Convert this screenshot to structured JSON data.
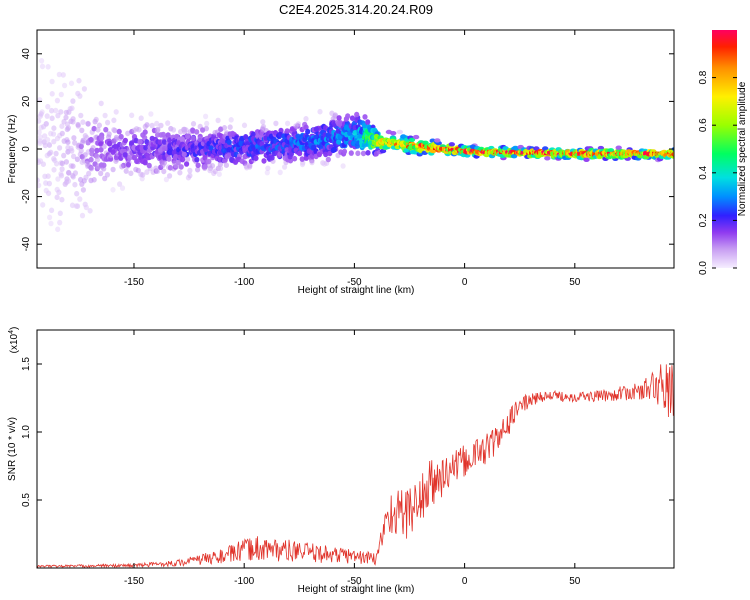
{
  "figure": {
    "title": "C2E4.2025.314.20.24.R09"
  },
  "colors": {
    "snr_line": "#e0332a",
    "axis": "#000000",
    "background": "#ffffff"
  },
  "chart_data": [
    {
      "type": "heatmap",
      "title": "C2E4.2025.314.20.24.R09",
      "xlabel": "Height of straight line (km)",
      "ylabel": "Frequency (Hz)",
      "xlim": [
        -194,
        95
      ],
      "ylim": [
        -50,
        50
      ],
      "x_ticks": [
        -150,
        -100,
        -50,
        0,
        50
      ],
      "y_ticks": [
        -40,
        -20,
        0,
        20,
        40
      ],
      "colorbar": {
        "label": "Normalized spectral amplitude",
        "range": [
          0,
          1
        ],
        "ticks": [
          "0.0",
          "0.2",
          "0.4",
          "0.6",
          "0.8"
        ],
        "tick_values": [
          0,
          0.2,
          0.4,
          0.6,
          0.8
        ]
      },
      "ridge": {
        "description_points": [
          {
            "x": -190,
            "f": 0,
            "spread": 48,
            "amp": 0.05
          },
          {
            "x": -160,
            "f": 0,
            "spread": 14,
            "amp": 0.15
          },
          {
            "x": -120,
            "f": 0,
            "spread": 10,
            "amp": 0.22
          },
          {
            "x": -80,
            "f": 2,
            "spread": 8,
            "amp": 0.28
          },
          {
            "x": -50,
            "f": 6,
            "spread": 10,
            "amp": 0.32
          },
          {
            "x": -38,
            "f": 3,
            "spread": 4,
            "amp": 0.75
          },
          {
            "x": -20,
            "f": 1,
            "spread": 3,
            "amp": 0.9
          },
          {
            "x": 0,
            "f": -1,
            "spread": 2,
            "amp": 0.95
          },
          {
            "x": 50,
            "f": -2,
            "spread": 2,
            "amp": 0.95
          },
          {
            "x": 95,
            "f": -2,
            "spread": 2,
            "amp": 0.9
          }
        ]
      }
    },
    {
      "type": "line",
      "xlabel": "Height of straight line (km)",
      "ylabel": "SNR (10 * v/v)",
      "y_multiplier": "(x10⁴)",
      "multiplier_base": "(x10",
      "multiplier_exp": "4",
      "multiplier_close": ")",
      "xlim": [
        -194,
        95
      ],
      "ylim": [
        0,
        1.75
      ],
      "x_ticks": [
        -150,
        -100,
        -50,
        0,
        50
      ],
      "y_ticks": [
        0.5,
        1.0,
        1.5
      ],
      "y_tick_labels": [
        "0.5",
        "1.0",
        "1.5"
      ],
      "series": [
        {
          "name": "SNR",
          "envelope": [
            {
              "x": -194,
              "y": 0.01,
              "noise": 0.01
            },
            {
              "x": -150,
              "y": 0.015,
              "noise": 0.015
            },
            {
              "x": -130,
              "y": 0.03,
              "noise": 0.03
            },
            {
              "x": -110,
              "y": 0.07,
              "noise": 0.07
            },
            {
              "x": -95,
              "y": 0.12,
              "noise": 0.12
            },
            {
              "x": -70,
              "y": 0.09,
              "noise": 0.09
            },
            {
              "x": -50,
              "y": 0.07,
              "noise": 0.07
            },
            {
              "x": -40,
              "y": 0.05,
              "noise": 0.06
            },
            {
              "x": -35,
              "y": 0.35,
              "noise": 0.2
            },
            {
              "x": -25,
              "y": 0.35,
              "noise": 0.25
            },
            {
              "x": -15,
              "y": 0.55,
              "noise": 0.25
            },
            {
              "x": -5,
              "y": 0.7,
              "noise": 0.15
            },
            {
              "x": 5,
              "y": 0.8,
              "noise": 0.15
            },
            {
              "x": 15,
              "y": 0.9,
              "noise": 0.15
            },
            {
              "x": 25,
              "y": 1.18,
              "noise": 0.08
            },
            {
              "x": 35,
              "y": 1.25,
              "noise": 0.05
            },
            {
              "x": 60,
              "y": 1.25,
              "noise": 0.05
            },
            {
              "x": 80,
              "y": 1.28,
              "noise": 0.08
            },
            {
              "x": 88,
              "y": 1.3,
              "noise": 0.2
            },
            {
              "x": 95,
              "y": 1.2,
              "noise": 0.3
            }
          ]
        }
      ]
    }
  ]
}
